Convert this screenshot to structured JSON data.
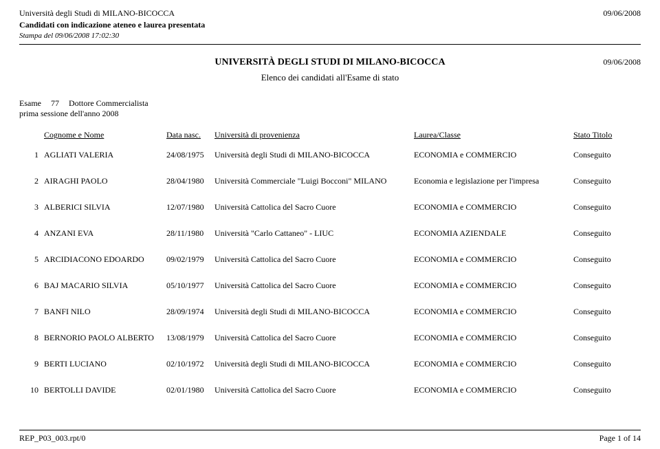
{
  "header": {
    "line1": "Università degli Studi di MILANO-BICOCCA",
    "line2": "Candidati con indicazione ateneo e laurea presentata",
    "line3": "Stampa del 09/06/2008 17:02:30",
    "date": "09/06/2008"
  },
  "title": {
    "main": "UNIVERSITÀ DEGLI STUDI DI MILANO-BICOCCA",
    "date": "09/06/2008",
    "subtitle": "Elenco dei candidati all'Esame di stato"
  },
  "exam": {
    "label": "Esame",
    "code": "77",
    "name": "Dottore Commercialista",
    "session": "prima sessione dell'anno 2008"
  },
  "columns": {
    "name": "Cognome e Nome",
    "date": "Data nasc.",
    "univ": "Università di provenienza",
    "degree": "Laurea/Classe",
    "status": "Stato Titolo"
  },
  "rows": [
    {
      "idx": "1",
      "name": "AGLIATI VALERIA",
      "date": "24/08/1975",
      "univ": "Università degli Studi di MILANO-BICOCCA",
      "degree": "ECONOMIA e COMMERCIO",
      "status": "Conseguito"
    },
    {
      "idx": "2",
      "name": "AIRAGHI PAOLO",
      "date": "28/04/1980",
      "univ": "Università Commerciale \"Luigi Bocconi\" MILANO",
      "degree": "Economia e legislazione per l'impresa",
      "status": "Conseguito"
    },
    {
      "idx": "3",
      "name": "ALBERICI SILVIA",
      "date": "12/07/1980",
      "univ": "Università Cattolica del Sacro Cuore",
      "degree": "ECONOMIA e COMMERCIO",
      "status": "Conseguito"
    },
    {
      "idx": "4",
      "name": "ANZANI EVA",
      "date": "28/11/1980",
      "univ": "Università \"Carlo Cattaneo\" - LIUC",
      "degree": "ECONOMIA AZIENDALE",
      "status": "Conseguito"
    },
    {
      "idx": "5",
      "name": "ARCIDIACONO EDOARDO",
      "date": "09/02/1979",
      "univ": "Università Cattolica del Sacro Cuore",
      "degree": "ECONOMIA e COMMERCIO",
      "status": "Conseguito"
    },
    {
      "idx": "6",
      "name": "BAJ MACARIO SILVIA",
      "date": "05/10/1977",
      "univ": "Università Cattolica del Sacro Cuore",
      "degree": "ECONOMIA e COMMERCIO",
      "status": "Conseguito"
    },
    {
      "idx": "7",
      "name": "BANFI NILO",
      "date": "28/09/1974",
      "univ": "Università degli Studi di MILANO-BICOCCA",
      "degree": "ECONOMIA e COMMERCIO",
      "status": "Conseguito"
    },
    {
      "idx": "8",
      "name": "BERNORIO PAOLO ALBERTO",
      "date": "13/08/1979",
      "univ": "Università Cattolica del Sacro Cuore",
      "degree": "ECONOMIA e COMMERCIO",
      "status": "Conseguito"
    },
    {
      "idx": "9",
      "name": "BERTI LUCIANO",
      "date": "02/10/1972",
      "univ": "Università degli Studi di MILANO-BICOCCA",
      "degree": "ECONOMIA e COMMERCIO",
      "status": "Conseguito"
    },
    {
      "idx": "10",
      "name": "BERTOLLI DAVIDE",
      "date": "02/01/1980",
      "univ": "Università Cattolica del Sacro Cuore",
      "degree": "ECONOMIA e COMMERCIO",
      "status": "Conseguito"
    }
  ],
  "footer": {
    "left": "REP_P03_003.rpt/0",
    "right": "Page 1 of 14"
  }
}
